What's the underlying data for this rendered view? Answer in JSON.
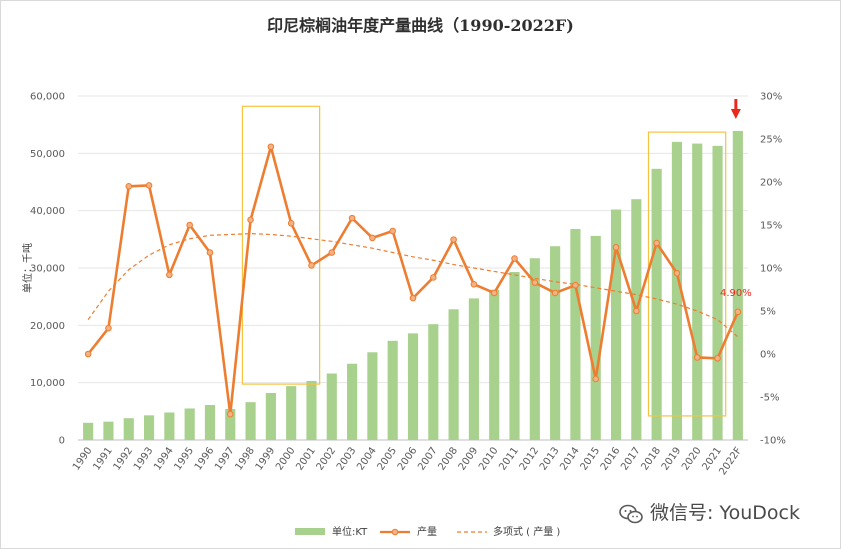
{
  "chart_data": {
    "type": "bar",
    "title": "印尼棕榈油年度产量曲线（1990-2022F)",
    "ylabel": "单位：千吨",
    "categories": [
      "1990",
      "1991",
      "1992",
      "1993",
      "1994",
      "1995",
      "1996",
      "1997",
      "1998",
      "1999",
      "2000",
      "2001",
      "2002",
      "2003",
      "2004",
      "2005",
      "2006",
      "2007",
      "2008",
      "2009",
      "2010",
      "2011",
      "2012",
      "2013",
      "2014",
      "2015",
      "2016",
      "2017",
      "2018",
      "2019",
      "2020",
      "2021",
      "2022F"
    ],
    "ylim": [
      0,
      60000
    ],
    "y2lim": [
      -10,
      30
    ],
    "yticks": [
      "0",
      "10,000",
      "20,000",
      "30,000",
      "40,000",
      "50,000",
      "60,000"
    ],
    "y2ticks": [
      "-10%",
      "-5%",
      "0%",
      "5%",
      "10%",
      "15%",
      "20%",
      "25%",
      "30%"
    ],
    "series": [
      {
        "name": "单位:KT",
        "type": "bar",
        "axis": "left",
        "color": "#a9d18e",
        "values": [
          3000,
          3200,
          3800,
          4300,
          4800,
          5500,
          6100,
          5400,
          6600,
          8200,
          9400,
          10300,
          11600,
          13300,
          15300,
          17300,
          18600,
          20200,
          22800,
          24700,
          26200,
          29300,
          31700,
          33800,
          36800,
          35600,
          40200,
          42000,
          47300,
          52000,
          51700,
          51300,
          53900
        ]
      },
      {
        "name": "产量",
        "type": "line",
        "axis": "right",
        "color": "#ed7d31",
        "values": [
          0,
          3,
          19.5,
          19.6,
          9.2,
          15,
          11.8,
          -7,
          15.6,
          24.1,
          15.2,
          10.3,
          11.8,
          15.8,
          13.5,
          14.3,
          6.5,
          8.9,
          13.3,
          8.1,
          7.1,
          11.1,
          8.3,
          7.1,
          8.0,
          -2.9,
          12.4,
          5,
          12.9,
          9.4,
          -0.4,
          -0.5,
          4.9
        ]
      },
      {
        "name": "多项式 ( 产量 )",
        "type": "trendline",
        "axis": "right",
        "color": "#ed7d31",
        "values": [
          4.0,
          7.3,
          9.8,
          11.5,
          12.7,
          13.4,
          13.8,
          13.9,
          14.0,
          13.9,
          13.7,
          13.4,
          13.1,
          12.7,
          12.3,
          11.8,
          11.3,
          10.9,
          10.4,
          10.0,
          9.6,
          9.2,
          8.8,
          8.4,
          8.1,
          7.7,
          7.3,
          6.9,
          6.4,
          5.8,
          5.0,
          4.0,
          2.0
        ]
      }
    ],
    "annotations": [
      {
        "x": "2022F",
        "text": "4.90%"
      }
    ],
    "legend_position": "bottom",
    "grid": true
  },
  "watermark": "微信号: YouDock",
  "colors": {
    "bar": "#a9d18e",
    "line": "#ed7d31",
    "box": "#f5c342",
    "arrow": "#e8291c",
    "grid": "#e6e6e6"
  }
}
